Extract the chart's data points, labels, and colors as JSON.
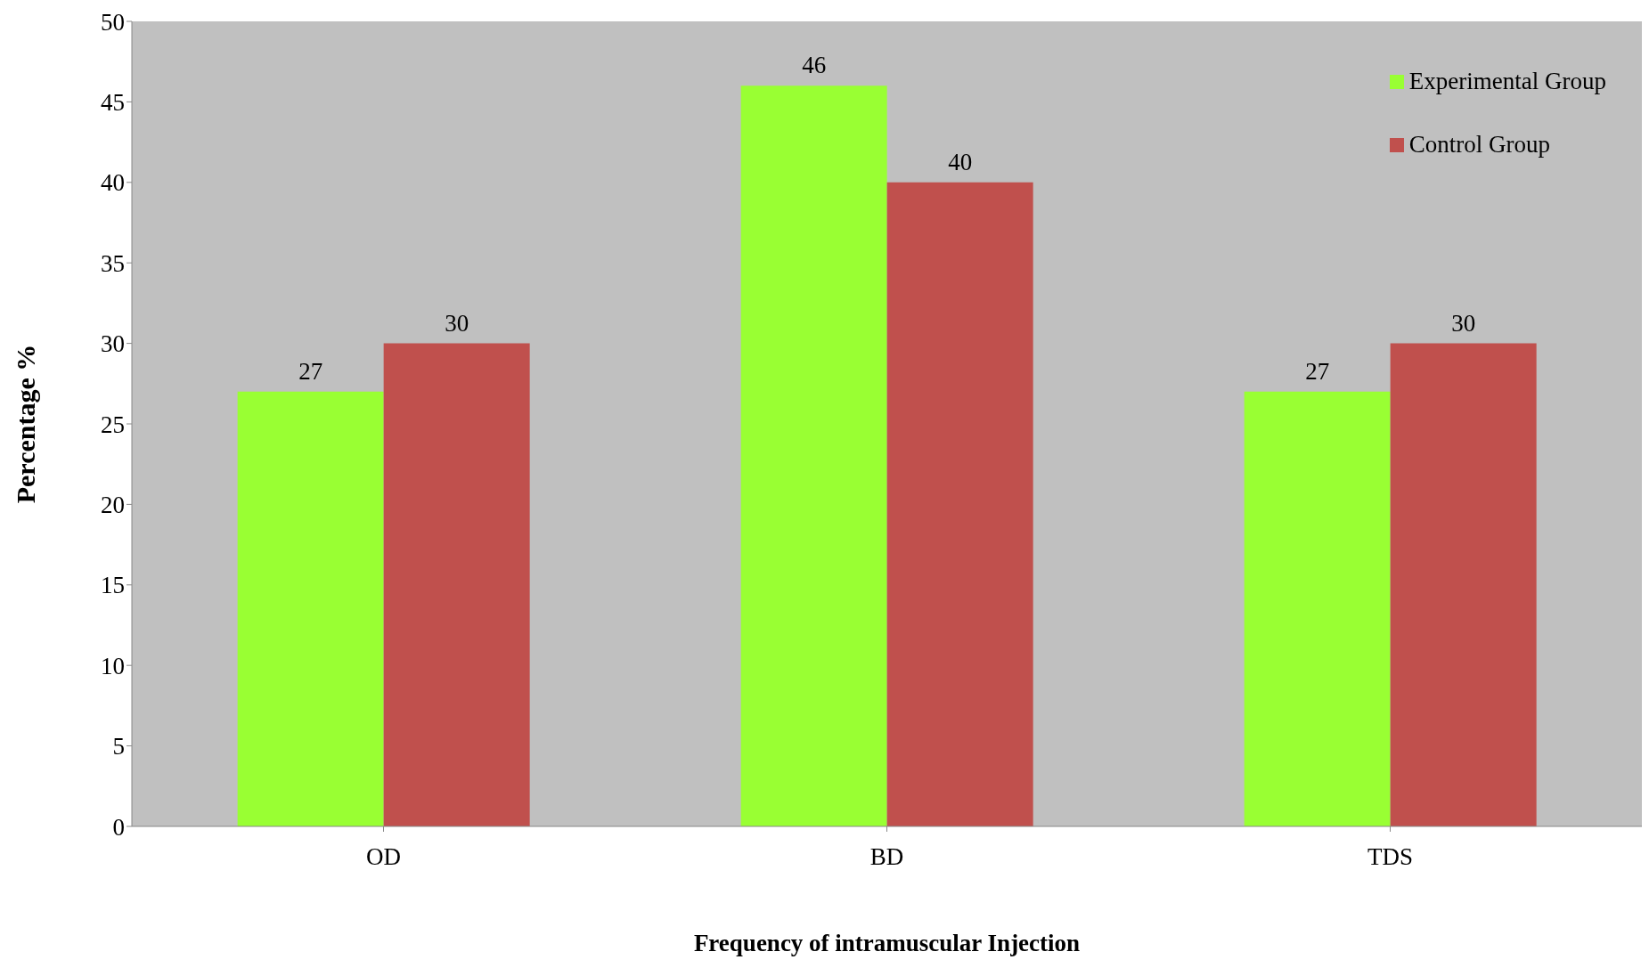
{
  "chart_data": {
    "type": "bar",
    "xlabel": "Frequency of intramuscular Injection",
    "ylabel": "Percentage %",
    "categories": [
      "OD",
      "BD",
      "TDS"
    ],
    "series": [
      {
        "name": "Experimental Group",
        "color": "#99ff33",
        "values": [
          27,
          46,
          27
        ]
      },
      {
        "name": "Control Group",
        "color": "#c0504d",
        "values": [
          30,
          40,
          30
        ]
      }
    ],
    "ylim": [
      0,
      50
    ],
    "yticks": [
      0,
      5,
      10,
      15,
      20,
      25,
      30,
      35,
      40,
      45,
      50
    ],
    "grid": false,
    "legend": "top right",
    "data_labels": true
  }
}
